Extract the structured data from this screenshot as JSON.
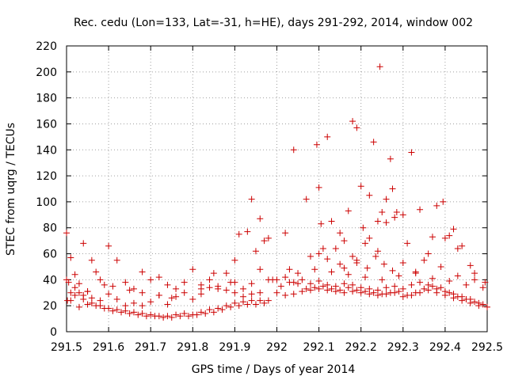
{
  "chart_data": {
    "type": "scatter",
    "title": "Rec. cedu (Lon=133, Lat=-31, h=HE), days 291-292, 2014, window 002",
    "xlabel": "GPS time / Days of year 2014",
    "ylabel": "STEC from uqrg / TECUs",
    "xlim": [
      291.5,
      292.5
    ],
    "ylim": [
      0,
      220
    ],
    "x_ticks": [
      291.5,
      291.6,
      291.7,
      291.8,
      291.9,
      292,
      292.1,
      292.2,
      292.3,
      292.4,
      292.5
    ],
    "x_tick_labels": [
      "291.5",
      "291.6",
      "291.7",
      "291.8",
      "291.9",
      "292",
      "292.1",
      "292.2",
      "292.3",
      "292.4",
      "292.5"
    ],
    "y_ticks": [
      0,
      20,
      40,
      60,
      80,
      100,
      120,
      140,
      160,
      180,
      200,
      220
    ],
    "y_tick_labels": [
      "0",
      "20",
      "40",
      "60",
      "80",
      "100",
      "120",
      "140",
      "160",
      "180",
      "200",
      "220"
    ],
    "grid": true,
    "marker": "+",
    "color": "#cc0000",
    "series": [
      {
        "name": "STEC",
        "x": [
          291.5,
          291.502,
          291.505,
          291.51,
          291.52,
          291.53,
          291.54,
          291.55,
          291.56,
          291.57,
          291.58,
          291.59,
          291.6,
          291.62,
          291.64,
          291.66,
          291.68,
          291.7,
          291.72,
          291.74,
          291.76,
          291.78,
          291.8,
          291.82,
          291.84,
          291.86,
          291.88,
          291.9,
          291.92,
          291.94,
          291.96,
          291.98,
          291.51,
          291.52,
          291.53,
          291.54,
          291.56,
          291.58,
          291.6,
          291.62,
          291.64,
          291.66,
          291.68,
          291.7,
          291.72,
          291.74,
          291.76,
          291.78,
          291.8,
          291.82,
          291.84,
          291.86,
          291.88,
          291.9,
          291.92,
          291.94,
          291.96,
          291.52,
          291.54,
          291.56,
          291.58,
          291.6,
          291.62,
          291.64,
          291.66,
          291.68,
          291.7,
          291.72,
          291.74,
          291.76,
          291.78,
          291.8,
          291.82,
          291.84,
          291.86,
          291.88,
          291.9,
          291.92,
          291.94,
          291.96,
          291.98,
          291.53,
          291.55,
          291.57,
          291.59,
          291.61,
          291.63,
          291.65,
          291.67,
          291.69,
          291.71,
          291.73,
          291.75,
          291.77,
          291.79,
          291.81,
          291.83,
          291.85,
          291.87,
          291.89,
          291.91,
          291.93,
          291.95,
          291.97,
          292.0,
          292.02,
          292.04,
          292.06,
          292.08,
          292.1,
          292.12,
          292.14,
          292.16,
          292.18,
          292.2,
          292.22,
          292.24,
          292.26,
          292.28,
          292.3,
          292.32,
          292.34,
          292.36,
          292.38,
          292.4,
          292.42,
          292.44,
          292.46,
          292.48,
          292.5,
          292.01,
          292.03,
          292.05,
          292.07,
          292.09,
          292.11,
          292.13,
          292.15,
          292.17,
          292.19,
          292.21,
          292.23,
          292.25,
          292.27,
          292.29,
          292.31,
          292.33,
          292.35,
          292.37,
          292.39,
          292.41,
          292.43,
          292.45,
          292.47,
          292.49,
          292.0,
          292.02,
          292.04,
          292.06,
          292.08,
          292.1,
          292.12,
          292.14,
          292.16,
          292.18,
          292.2,
          292.22,
          292.24,
          292.26,
          292.28,
          292.3,
          292.32,
          292.34,
          292.36,
          292.38,
          292.4,
          292.42,
          292.44,
          292.46,
          292.48,
          292.05,
          292.09,
          292.13,
          292.17,
          292.21,
          292.25,
          292.29,
          292.33,
          292.37,
          292.41,
          292.45,
          292.49,
          291.5,
          291.51,
          291.55,
          291.61,
          291.65,
          291.68,
          291.72,
          291.75,
          291.82,
          291.85,
          291.89,
          291.9,
          291.91,
          291.93,
          291.94,
          291.95,
          291.96,
          291.97,
          291.98,
          291.99,
          292.02,
          292.04,
          292.07,
          292.095,
          292.1,
          292.105,
          292.12,
          292.15,
          292.17,
          292.18,
          292.19,
          292.2,
          292.205,
          292.22,
          292.23,
          292.24,
          292.245,
          292.26,
          292.27,
          292.275,
          292.285,
          292.31,
          292.32,
          292.34,
          292.36,
          292.37,
          292.38,
          292.395,
          292.4,
          292.41,
          292.42,
          292.43,
          292.44,
          292.46,
          292.47,
          292.495,
          292.1,
          292.11,
          292.13,
          292.15,
          292.16,
          292.18,
          292.19,
          292.21,
          292.22,
          292.24,
          292.25,
          292.26,
          292.28,
          292.3,
          292.03,
          292.08,
          292.12,
          292.14,
          292.16,
          292.19,
          292.215,
          292.235,
          292.255,
          292.275,
          292.3,
          292.33,
          292.35,
          292.39,
          292.43,
          292.47
        ],
        "y": [
          76,
          24,
          38,
          57,
          44,
          37,
          68,
          31,
          55,
          46,
          40,
          36,
          66,
          55,
          38,
          33,
          46,
          40,
          42,
          36,
          33,
          38,
          48,
          36,
          40,
          35,
          45,
          38,
          33,
          37,
          48,
          40,
          30,
          34,
          30,
          28,
          26,
          24,
          29,
          25,
          20,
          22,
          20,
          23,
          28,
          21,
          27,
          30,
          25,
          29,
          34,
          33,
          32,
          30,
          27,
          29,
          30,
          28,
          25,
          22,
          20,
          18,
          17,
          16,
          15,
          14,
          13,
          12,
          12,
          13,
          14,
          13,
          15,
          17,
          18,
          20,
          22,
          23,
          24,
          24,
          24,
          19,
          21,
          20,
          18,
          16,
          15,
          14,
          13,
          12,
          12,
          11,
          11,
          12,
          12,
          13,
          14,
          15,
          17,
          19,
          20,
          21,
          21,
          22,
          30,
          28,
          29,
          31,
          32,
          33,
          32,
          31,
          30,
          31,
          30,
          29,
          28,
          29,
          30,
          27,
          28,
          30,
          32,
          30,
          28,
          26,
          24,
          22,
          20,
          19,
          35,
          38,
          37,
          33,
          34,
          35,
          33,
          32,
          34,
          32,
          31,
          30,
          29,
          30,
          31,
          28,
          30,
          33,
          35,
          34,
          30,
          27,
          25,
          23,
          21,
          40,
          42,
          38,
          40,
          37,
          39,
          36,
          35,
          37,
          36,
          34,
          33,
          32,
          34,
          35,
          33,
          36,
          38,
          36,
          33,
          31,
          29,
          27,
          25,
          22,
          45,
          48,
          46,
          44,
          42,
          40,
          43,
          45,
          41,
          39,
          36,
          34,
          40,
          24,
          31,
          35,
          32,
          30,
          28,
          26,
          33,
          45,
          38,
          55,
          75,
          77,
          102,
          62,
          87,
          70,
          72,
          40,
          76,
          140,
          102,
          144,
          111,
          83,
          150,
          76,
          93,
          162,
          157,
          112,
          80,
          105,
          146,
          85,
          204,
          102,
          133,
          110,
          92,
          68,
          138,
          94,
          60,
          73,
          97,
          100,
          72,
          74,
          79,
          64,
          66,
          51,
          40,
          38,
          60,
          64,
          85,
          52,
          70,
          58,
          55,
          68,
          72,
          62,
          92,
          84,
          88,
          90,
          48,
          58,
          56,
          64,
          49,
          53,
          49,
          58,
          52,
          47,
          53,
          46,
          55,
          50,
          43,
          45
        ]
      }
    ]
  }
}
